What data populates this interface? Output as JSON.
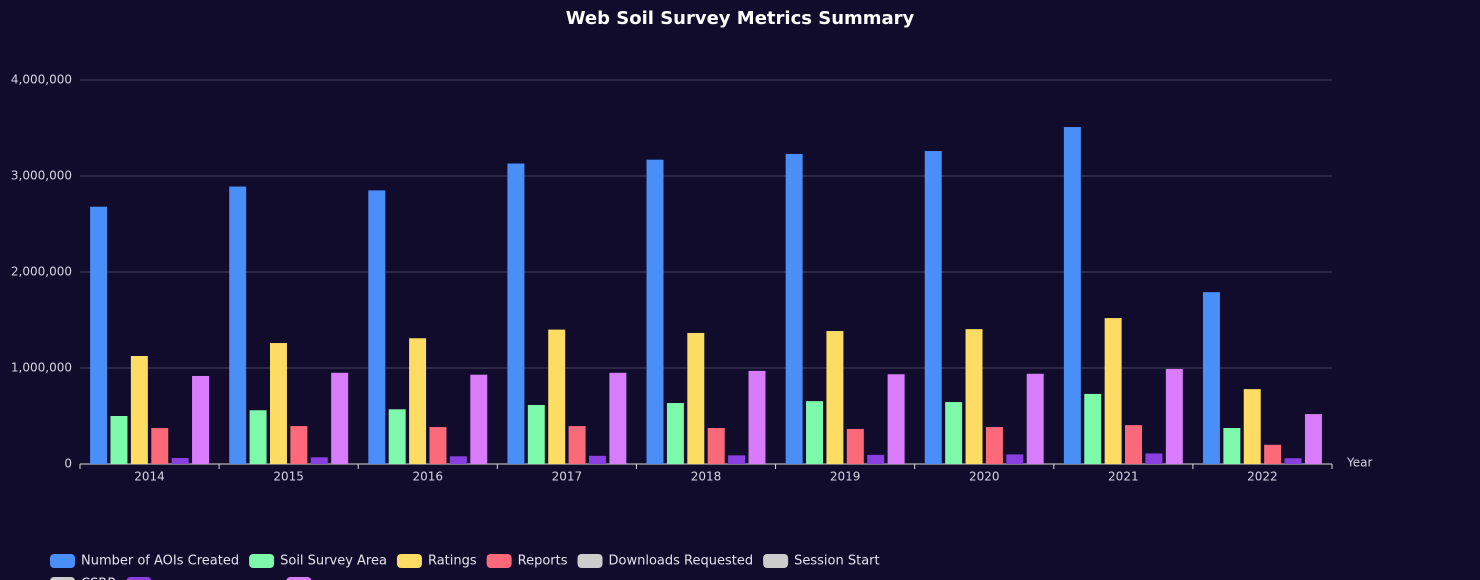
{
  "chart_data": {
    "type": "bar",
    "title": "Web Soil Survey Metrics Summary",
    "x_label": "Year",
    "categories": [
      "2014",
      "2015",
      "2016",
      "2017",
      "2018",
      "2019",
      "2020",
      "2021",
      "2022"
    ],
    "ylim": [
      0,
      4000000
    ],
    "yticks": [
      0,
      {
        "value": 1000000,
        "label": "1,000,000"
      },
      {
        "value": 2000000,
        "label": "2,000,000"
      },
      {
        "value": 3000000,
        "label": "3,000,000"
      },
      {
        "value": 4000000,
        "label": "4,000,000"
      }
    ],
    "grid": true,
    "legend": "bottom",
    "series": [
      {
        "name": "Number of AOIs Created",
        "color": "#4a8ef8",
        "values": [
          2680000,
          2890000,
          2850000,
          3130000,
          3170000,
          3230000,
          3260000,
          3510000,
          1790000
        ]
      },
      {
        "name": "Soil Survey Area",
        "color": "#7cf9aa",
        "values": [
          500000,
          560000,
          570000,
          615000,
          635000,
          655000,
          645000,
          730000,
          375000
        ]
      },
      {
        "name": "Ratings",
        "color": "#fcdc62",
        "values": [
          1125000,
          1260000,
          1310000,
          1400000,
          1365000,
          1385000,
          1405000,
          1520000,
          780000
        ]
      },
      {
        "name": "Reports",
        "color": "#fc6a7a",
        "values": [
          375000,
          395000,
          385000,
          395000,
          375000,
          365000,
          385000,
          405000,
          200000
        ]
      },
      {
        "name": "Downloads Requested",
        "color": "#cccccc",
        "visible": false
      },
      {
        "name": "Session Start",
        "color": "#cccccc",
        "visible": false
      },
      {
        "name": "CSRR",
        "color": "#cccccc",
        "visible": false
      },
      {
        "color": "#8b3fe0",
        "values": [
          62500,
          70000,
          80000,
          85000,
          90000,
          95000,
          100000,
          110000,
          60000
        ]
      },
      {
        "color": "#d97cfb",
        "values": [
          917000,
          950000,
          930000,
          950000,
          970000,
          935000,
          940000,
          990000,
          520000
        ]
      }
    ]
  }
}
